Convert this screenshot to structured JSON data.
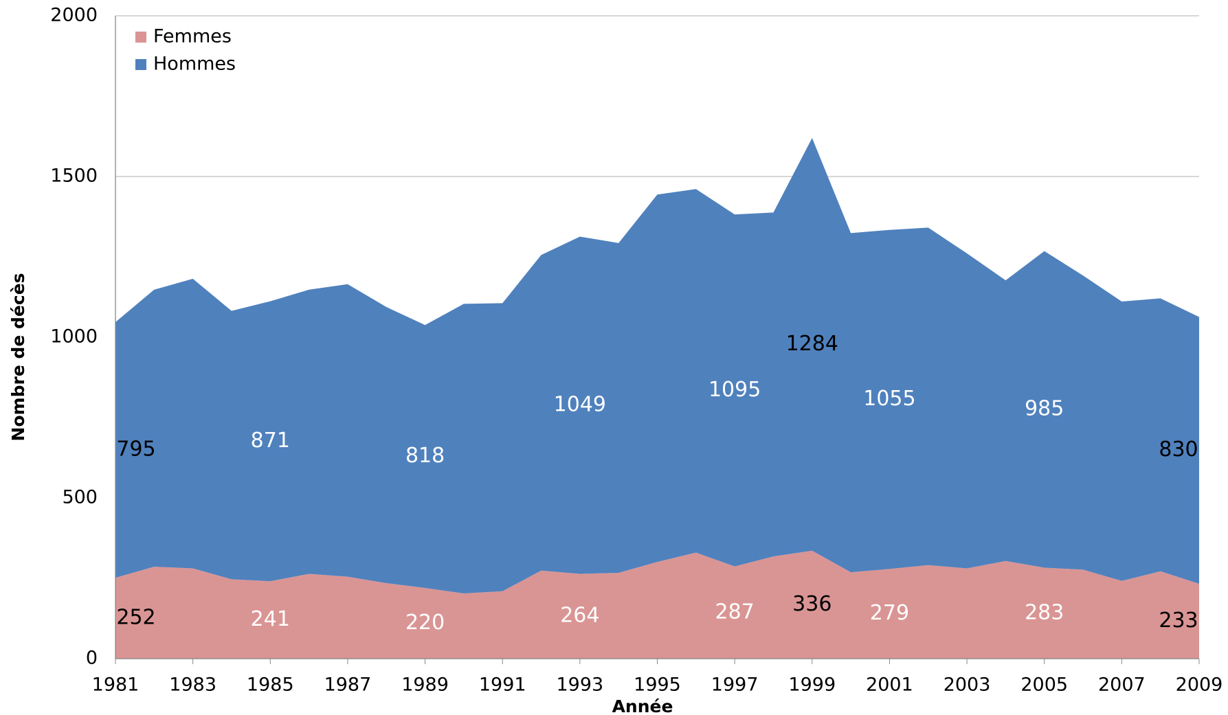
{
  "chart_data": {
    "type": "stacked_area",
    "x_label": "Année",
    "y_label": "Nombre de décès",
    "x": [
      1981,
      1982,
      1983,
      1984,
      1985,
      1986,
      1987,
      1988,
      1989,
      1990,
      1991,
      1992,
      1993,
      1994,
      1995,
      1996,
      1997,
      1998,
      1999,
      2000,
      2001,
      2002,
      2003,
      2004,
      2005,
      2006,
      2007,
      2008,
      2009
    ],
    "xlim": [
      1981,
      2009
    ],
    "xticks": [
      1981,
      1983,
      1985,
      1987,
      1989,
      1991,
      1993,
      1995,
      1997,
      1999,
      2001,
      2003,
      2005,
      2007,
      2009
    ],
    "ylim": [
      0,
      2000
    ],
    "yticks": [
      0,
      500,
      1000,
      1500,
      2000
    ],
    "grid": true,
    "legend": "upper left",
    "series": [
      {
        "name": "Femmes",
        "color": "#d99594",
        "values": [
          252,
          286,
          281,
          247,
          241,
          264,
          255,
          235,
          220,
          203,
          210,
          274,
          264,
          267,
          301,
          330,
          287,
          318,
          336,
          269,
          279,
          291,
          281,
          304,
          283,
          277,
          242,
          272,
          233
        ],
        "value_labels": [
          "252",
          null,
          null,
          null,
          "241",
          null,
          null,
          null,
          "220",
          null,
          null,
          null,
          "264",
          null,
          null,
          null,
          "287",
          null,
          "336",
          null,
          "279",
          null,
          null,
          null,
          "283",
          null,
          null,
          null,
          "233"
        ],
        "value_label_colors": [
          "#000000",
          null,
          null,
          null,
          "#ffffff",
          null,
          null,
          null,
          "#ffffff",
          null,
          null,
          null,
          "#ffffff",
          null,
          null,
          null,
          "#ffffff",
          null,
          "#000000",
          null,
          "#ffffff",
          null,
          null,
          null,
          "#ffffff",
          null,
          null,
          null,
          "#000000"
        ]
      },
      {
        "name": "Hommes",
        "color": "#4f81bd",
        "values": [
          795,
          862,
          901,
          835,
          871,
          884,
          910,
          859,
          818,
          901,
          896,
          982,
          1049,
          1026,
          1143,
          1131,
          1095,
          1070,
          1284,
          1055,
          1055,
          1050,
          980,
          873,
          985,
          915,
          869,
          849,
          830
        ],
        "value_labels": [
          "795",
          null,
          null,
          null,
          "871",
          null,
          null,
          null,
          "818",
          null,
          null,
          null,
          "1049",
          null,
          null,
          null,
          "1095",
          null,
          "1284",
          null,
          "1055",
          null,
          null,
          null,
          "985",
          null,
          null,
          null,
          "830"
        ],
        "value_label_colors": [
          "#000000",
          null,
          null,
          null,
          "#ffffff",
          null,
          null,
          null,
          "#ffffff",
          null,
          null,
          null,
          "#ffffff",
          null,
          null,
          null,
          "#ffffff",
          null,
          "#000000",
          null,
          "#ffffff",
          null,
          null,
          null,
          "#ffffff",
          null,
          null,
          null,
          "#000000"
        ]
      }
    ]
  }
}
